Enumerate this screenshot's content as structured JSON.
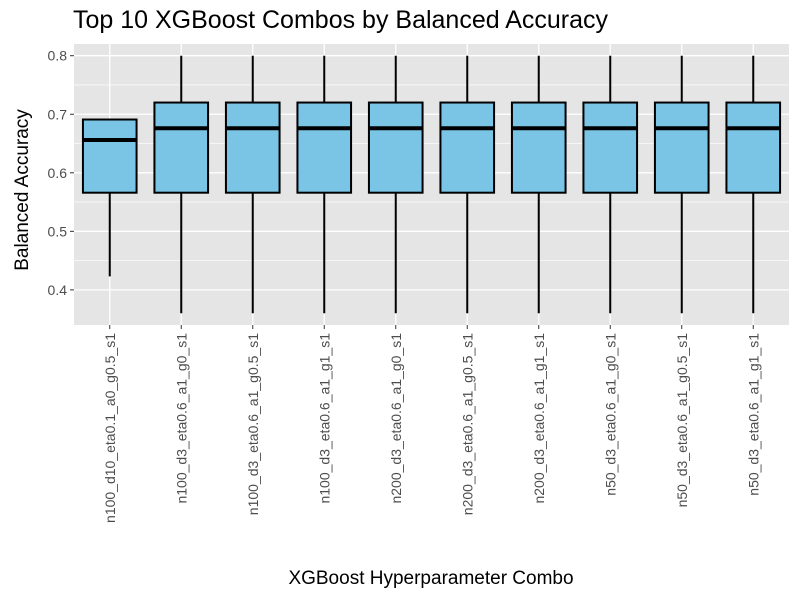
{
  "chart_data": {
    "type": "box",
    "title": "Top 10 XGBoost Combos by Balanced Accuracy",
    "xlabel": "XGBoost Hyperparameter Combo",
    "ylabel": "Balanced Accuracy",
    "ylim": [
      0.34,
      0.82
    ],
    "yticks": [
      0.4,
      0.5,
      0.6,
      0.7,
      0.8
    ],
    "ytick_labels": [
      "0.4",
      "0.5",
      "0.6",
      "0.7",
      "0.8"
    ],
    "grid": true,
    "colors": {
      "panel_bg": "#e5e5e5",
      "grid_line": "#ffffff",
      "box_fill": "#7ac5e6",
      "box_stroke": "#000000",
      "tick_text": "#4d4d4d"
    },
    "categories": [
      "n100_d10_eta0.1_a0_g0.5_s1",
      "n100_d3_eta0.6_a1_g0_s1",
      "n100_d3_eta0.6_a1_g0.5_s1",
      "n100_d3_eta0.6_a1_g1_s1",
      "n200_d3_eta0.6_a1_g0_s1",
      "n200_d3_eta0.6_a1_g0.5_s1",
      "n200_d3_eta0.6_a1_g1_s1",
      "n50_d3_eta0.6_a1_g0_s1",
      "n50_d3_eta0.6_a1_g0.5_s1",
      "n50_d3_eta0.6_a1_g1_s1"
    ],
    "boxes": [
      {
        "min": 0.423,
        "q1": 0.566,
        "median": 0.656,
        "q3": 0.691,
        "max": 0.691
      },
      {
        "min": 0.36,
        "q1": 0.566,
        "median": 0.676,
        "q3": 0.72,
        "max": 0.8
      },
      {
        "min": 0.36,
        "q1": 0.566,
        "median": 0.676,
        "q3": 0.72,
        "max": 0.8
      },
      {
        "min": 0.36,
        "q1": 0.566,
        "median": 0.676,
        "q3": 0.72,
        "max": 0.8
      },
      {
        "min": 0.36,
        "q1": 0.566,
        "median": 0.676,
        "q3": 0.72,
        "max": 0.8
      },
      {
        "min": 0.36,
        "q1": 0.566,
        "median": 0.676,
        "q3": 0.72,
        "max": 0.8
      },
      {
        "min": 0.36,
        "q1": 0.566,
        "median": 0.676,
        "q3": 0.72,
        "max": 0.8
      },
      {
        "min": 0.36,
        "q1": 0.566,
        "median": 0.676,
        "q3": 0.72,
        "max": 0.8
      },
      {
        "min": 0.36,
        "q1": 0.566,
        "median": 0.676,
        "q3": 0.72,
        "max": 0.8
      },
      {
        "min": 0.36,
        "q1": 0.566,
        "median": 0.676,
        "q3": 0.72,
        "max": 0.8
      }
    ]
  }
}
